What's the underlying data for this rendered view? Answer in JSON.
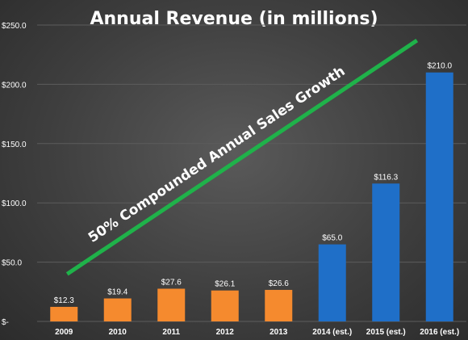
{
  "chart_data": {
    "type": "bar",
    "title": "Annual Revenue (in millions)",
    "categories": [
      "2009",
      "2010",
      "2011",
      "2012",
      "2013",
      "2014 (est.)",
      "2015 (est.)",
      "2016 (est.)"
    ],
    "values": [
      12.3,
      19.4,
      27.6,
      26.1,
      26.6,
      65.0,
      116.3,
      210.0
    ],
    "data_labels": [
      "$12.3",
      "$19.4",
      "$27.6",
      "$26.1",
      "$26.6",
      "$65.0",
      "$116.3",
      "$210.0"
    ],
    "bar_colors": [
      "#f58a2e",
      "#f58a2e",
      "#f58a2e",
      "#f58a2e",
      "#f58a2e",
      "#1f6fc8",
      "#1f6fc8",
      "#1f6fc8"
    ],
    "ylim": [
      0,
      250
    ],
    "y_ticks": [
      0,
      50,
      100,
      150,
      200,
      250
    ],
    "y_tick_labels": [
      "$-",
      "$50.0",
      "$100.0",
      "$150.0",
      "$200.0",
      "$250.0"
    ],
    "grid": true,
    "annotation": {
      "text": "50% Compounded Annual Sales Growth",
      "color": "#1fb24a",
      "from": {
        "x": "2009",
        "y": 40
      },
      "to": {
        "x": "2016 (est.)",
        "y": 237
      }
    },
    "background_color": "#454545",
    "text_color": "#ffffff"
  }
}
